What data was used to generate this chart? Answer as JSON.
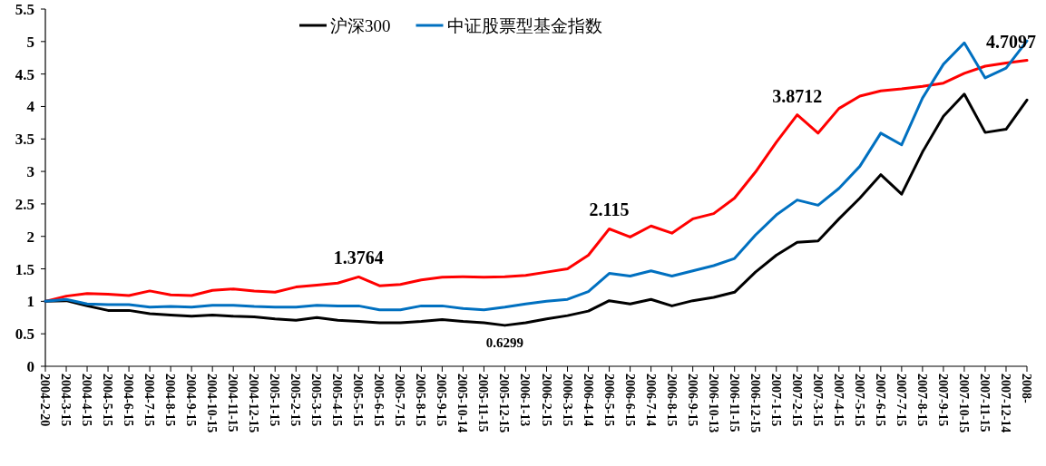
{
  "chart_data": {
    "type": "line",
    "categories": [
      "2004-2-20",
      "2004-3-15",
      "2004-4-15",
      "2004-5-15",
      "2004-6-15",
      "2004-7-15",
      "2004-8-15",
      "2004-9-15",
      "2004-10-15",
      "2004-11-15",
      "2004-12-15",
      "2005-1-15",
      "2005-2-15",
      "2005-3-15",
      "2005-4-15",
      "2005-5-15",
      "2005-6-15",
      "2005-7-15",
      "2005-8-15",
      "2005-9-15",
      "2005-10-14",
      "2005-11-15",
      "2005-12-15",
      "2006-1-13",
      "2006-2-15",
      "2006-3-15",
      "2006-4-14",
      "2006-5-15",
      "2006-6-15",
      "2006-7-14",
      "2006-8-15",
      "2006-9-15",
      "2006-10-13",
      "2006-11-15",
      "2006-12-15",
      "2007-1-15",
      "2007-2-15",
      "2007-3-15",
      "2007-4-15",
      "2007-5-15",
      "2007-6-15",
      "2007-7-15",
      "2007-8-15",
      "2007-9-15",
      "2007-10-15",
      "2007-11-15",
      "2007-12-14",
      "2008-"
    ],
    "series": [
      {
        "color": "#ff0000",
        "values": [
          1.0,
          1.08,
          1.12,
          1.11,
          1.09,
          1.16,
          1.1,
          1.09,
          1.17,
          1.19,
          1.16,
          1.14,
          1.22,
          1.25,
          1.28,
          1.3764,
          1.24,
          1.26,
          1.33,
          1.37,
          1.38,
          1.37,
          1.38,
          1.4,
          1.45,
          1.5,
          1.71,
          2.115,
          1.99,
          2.16,
          2.05,
          2.27,
          2.35,
          2.59,
          2.99,
          3.45,
          3.8712,
          3.59,
          3.97,
          4.16,
          4.24,
          4.27,
          4.31,
          4.36,
          4.51,
          4.62,
          4.67,
          4.7097
        ]
      },
      {
        "name": "沪深300",
        "color": "#000000",
        "values": [
          1.0,
          1.01,
          0.93,
          0.86,
          0.86,
          0.81,
          0.79,
          0.77,
          0.79,
          0.77,
          0.76,
          0.73,
          0.71,
          0.75,
          0.71,
          0.69,
          0.67,
          0.67,
          0.69,
          0.72,
          0.69,
          0.67,
          0.6299,
          0.67,
          0.73,
          0.78,
          0.85,
          1.01,
          0.96,
          1.03,
          0.93,
          1.01,
          1.06,
          1.14,
          1.45,
          1.71,
          1.91,
          1.93,
          2.27,
          2.59,
          2.95,
          2.65,
          3.3,
          3.85,
          4.19,
          3.6,
          3.65,
          4.1
        ]
      },
      {
        "name": "中证股票型基金指数",
        "color": "#0070c0",
        "values": [
          1.0,
          1.03,
          0.96,
          0.95,
          0.95,
          0.91,
          0.92,
          0.91,
          0.94,
          0.94,
          0.92,
          0.91,
          0.91,
          0.94,
          0.93,
          0.93,
          0.87,
          0.87,
          0.93,
          0.93,
          0.89,
          0.87,
          0.91,
          0.96,
          1.0,
          1.03,
          1.15,
          1.43,
          1.39,
          1.47,
          1.39,
          1.47,
          1.55,
          1.66,
          2.02,
          2.33,
          2.56,
          2.48,
          2.74,
          3.08,
          3.59,
          3.41,
          4.13,
          4.65,
          4.98,
          4.44,
          4.59,
          5.01
        ]
      }
    ],
    "ylim": [
      0,
      5.5
    ],
    "yticks": [
      0,
      0.5,
      1,
      1.5,
      2,
      2.5,
      3,
      3.5,
      4,
      4.5,
      5,
      5.5
    ],
    "annotations": [
      {
        "text": "1.3764",
        "x": "2005-5-15",
        "y": 1.3764
      },
      {
        "text": "0.6299",
        "x": "2005-12-15",
        "y": 0.6299
      },
      {
        "text": "2.115",
        "x": "2006-5-15",
        "y": 2.115
      },
      {
        "text": "3.8712",
        "x": "2007-2-15",
        "y": 3.8712
      },
      {
        "text": "4.7097",
        "x": "2008-",
        "y": 4.7097
      }
    ],
    "legend": "top",
    "grid": false,
    "marker": "none",
    "line_style": "solid"
  }
}
